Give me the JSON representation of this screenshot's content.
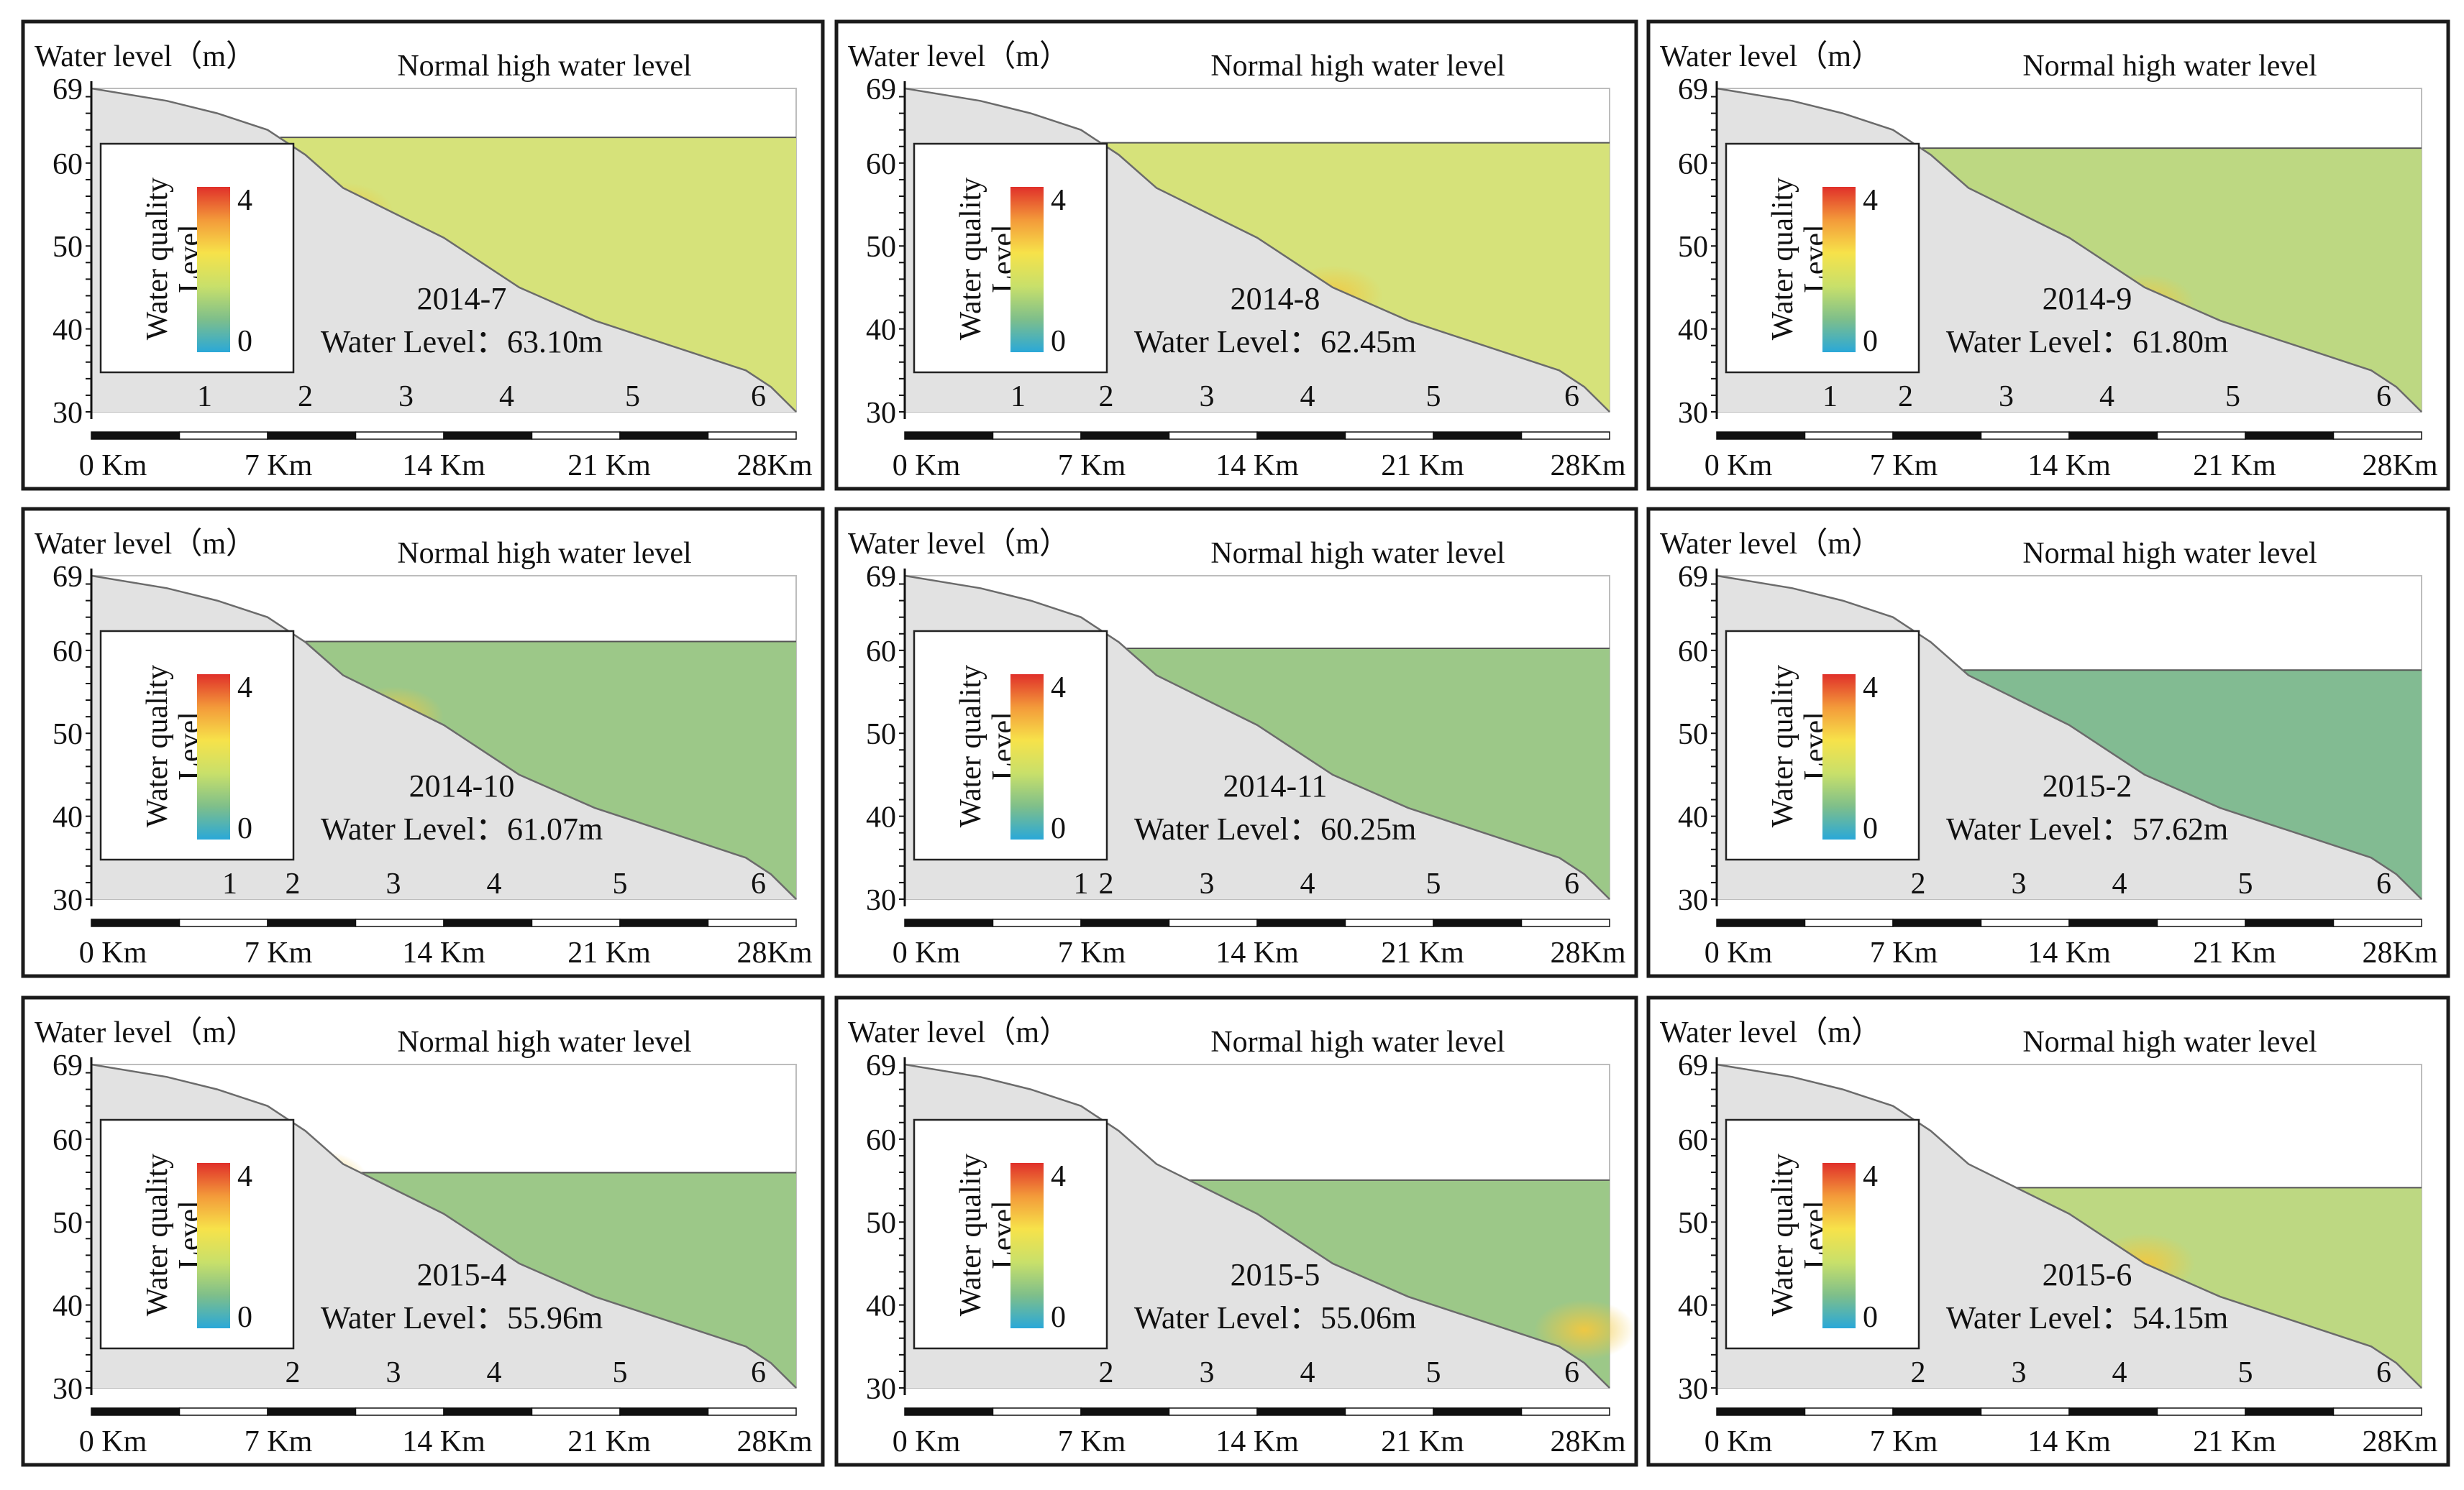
{
  "figure": {
    "layout": "3x3 grid",
    "y_axis_label": "Water level（m）",
    "normal_level_label": "Normal high water level",
    "colorbar_label_line1": "Water quality",
    "colorbar_label_line2": "Level",
    "colorbar_max": 4,
    "colorbar_min": 0,
    "colorbar_colors": [
      "#e0302a",
      "#f39a3a",
      "#f7e24a",
      "#c9e06a",
      "#7fbf8a",
      "#2aa8d8"
    ],
    "water_level_prefix": "Water Level：",
    "y_ticks": [
      30,
      40,
      50,
      60,
      69
    ],
    "x_ticks": [
      "0 Km",
      "7 Km",
      "14 Km",
      "21 Km",
      "28Km"
    ],
    "normal_high_water_level_m": 69,
    "colors": {
      "terrain": "#e2e2e2",
      "yellowish_water": "#d6e27a",
      "light_green_water": "#bdd882",
      "green_water": "#9cc888",
      "teal_water": "#82bb92",
      "yellow_spot": "#f0d85a"
    }
  },
  "chart_data": [
    {
      "type": "area",
      "title": "2014-7",
      "water_level": "63.10m",
      "water_level_m": 63.1,
      "stations": [
        "1",
        "2",
        "3",
        "4",
        "5",
        "6"
      ],
      "station_km": [
        4.5,
        8.5,
        12.5,
        16.5,
        21.5,
        26.5
      ],
      "water_color": "yellowish_water",
      "spots": [
        {
          "km": 10,
          "m": 54,
          "color": "yellow_spot"
        }
      ],
      "xlim_km": [
        0,
        28
      ],
      "ylim_m": [
        30,
        69
      ]
    },
    {
      "type": "area",
      "title": "2014-8",
      "water_level": "62.45m",
      "water_level_m": 62.45,
      "stations": [
        "1",
        "2",
        "3",
        "4",
        "5",
        "6"
      ],
      "station_km": [
        4.5,
        8.0,
        12.0,
        16.0,
        21.0,
        26.5
      ],
      "water_color": "yellowish_water",
      "spots": [
        {
          "km": 17,
          "m": 44,
          "color": "yellow_spot"
        }
      ],
      "xlim_km": [
        0,
        28
      ],
      "ylim_m": [
        30,
        69
      ]
    },
    {
      "type": "area",
      "title": "2014-9",
      "water_level": "61.80m",
      "water_level_m": 61.8,
      "stations": [
        "1",
        "2",
        "3",
        "4",
        "5",
        "6"
      ],
      "station_km": [
        4.5,
        7.5,
        11.5,
        15.5,
        20.5,
        26.5
      ],
      "water_color": "light_green_water",
      "spots": [
        {
          "km": 17,
          "m": 43,
          "color": "yellow_spot"
        }
      ],
      "xlim_km": [
        0,
        28
      ],
      "ylim_m": [
        30,
        69
      ]
    },
    {
      "type": "area",
      "title": "2014-10",
      "water_level": "61.07m",
      "water_level_m": 61.07,
      "stations": [
        "1",
        "2",
        "3",
        "4",
        "5",
        "6"
      ],
      "station_km": [
        5.5,
        8.0,
        12.0,
        16.0,
        21.0,
        26.5
      ],
      "water_color": "green_water",
      "spots": [
        {
          "km": 12,
          "m": 52,
          "color": "yellow_spot"
        }
      ],
      "xlim_km": [
        0,
        28
      ],
      "ylim_m": [
        30,
        69
      ]
    },
    {
      "type": "area",
      "title": "2014-11",
      "water_level": "60.25m",
      "water_level_m": 60.25,
      "stations": [
        "1",
        "2",
        "3",
        "4",
        "5",
        "6"
      ],
      "station_km": [
        7.0,
        8.0,
        12.0,
        16.0,
        21.0,
        26.5
      ],
      "water_color": "green_water",
      "spots": [],
      "xlim_km": [
        0,
        28
      ],
      "ylim_m": [
        30,
        69
      ]
    },
    {
      "type": "area",
      "title": "2015-2",
      "water_level": "57.62m",
      "water_level_m": 57.62,
      "stations": [
        "2",
        "3",
        "4",
        "5",
        "6"
      ],
      "station_km": [
        8.0,
        12.0,
        16.0,
        21.0,
        26.5
      ],
      "water_color": "teal_water",
      "spots": [],
      "xlim_km": [
        0,
        28
      ],
      "ylim_m": [
        30,
        69
      ]
    },
    {
      "type": "area",
      "title": "2015-4",
      "water_level": "55.96m",
      "water_level_m": 55.96,
      "stations": [
        "2",
        "3",
        "4",
        "5",
        "6"
      ],
      "station_km": [
        8.0,
        12.0,
        16.0,
        21.0,
        26.5
      ],
      "water_color": "green_water",
      "spots": [
        {
          "km": 9,
          "m": 55,
          "color": "yellow_spot"
        }
      ],
      "xlim_km": [
        0,
        28
      ],
      "ylim_m": [
        30,
        69
      ]
    },
    {
      "type": "area",
      "title": "2015-5",
      "water_level": "55.06m",
      "water_level_m": 55.06,
      "stations": [
        "2",
        "3",
        "4",
        "5",
        "6"
      ],
      "station_km": [
        8.0,
        12.0,
        16.0,
        21.0,
        26.5
      ],
      "water_color": "green_water",
      "spots": [
        {
          "km": 27,
          "m": 37,
          "color": "yellow_spot"
        }
      ],
      "xlim_km": [
        0,
        28
      ],
      "ylim_m": [
        30,
        69
      ]
    },
    {
      "type": "area",
      "title": "2015-6",
      "water_level": "54.15m",
      "water_level_m": 54.15,
      "stations": [
        "2",
        "3",
        "4",
        "5",
        "6"
      ],
      "station_km": [
        8.0,
        12.0,
        16.0,
        21.0,
        26.5
      ],
      "water_color": "light_green_water",
      "spots": [
        {
          "km": 17,
          "m": 45,
          "color": "yellow_spot"
        }
      ],
      "xlim_km": [
        0,
        28
      ],
      "ylim_m": [
        30,
        69
      ]
    }
  ]
}
